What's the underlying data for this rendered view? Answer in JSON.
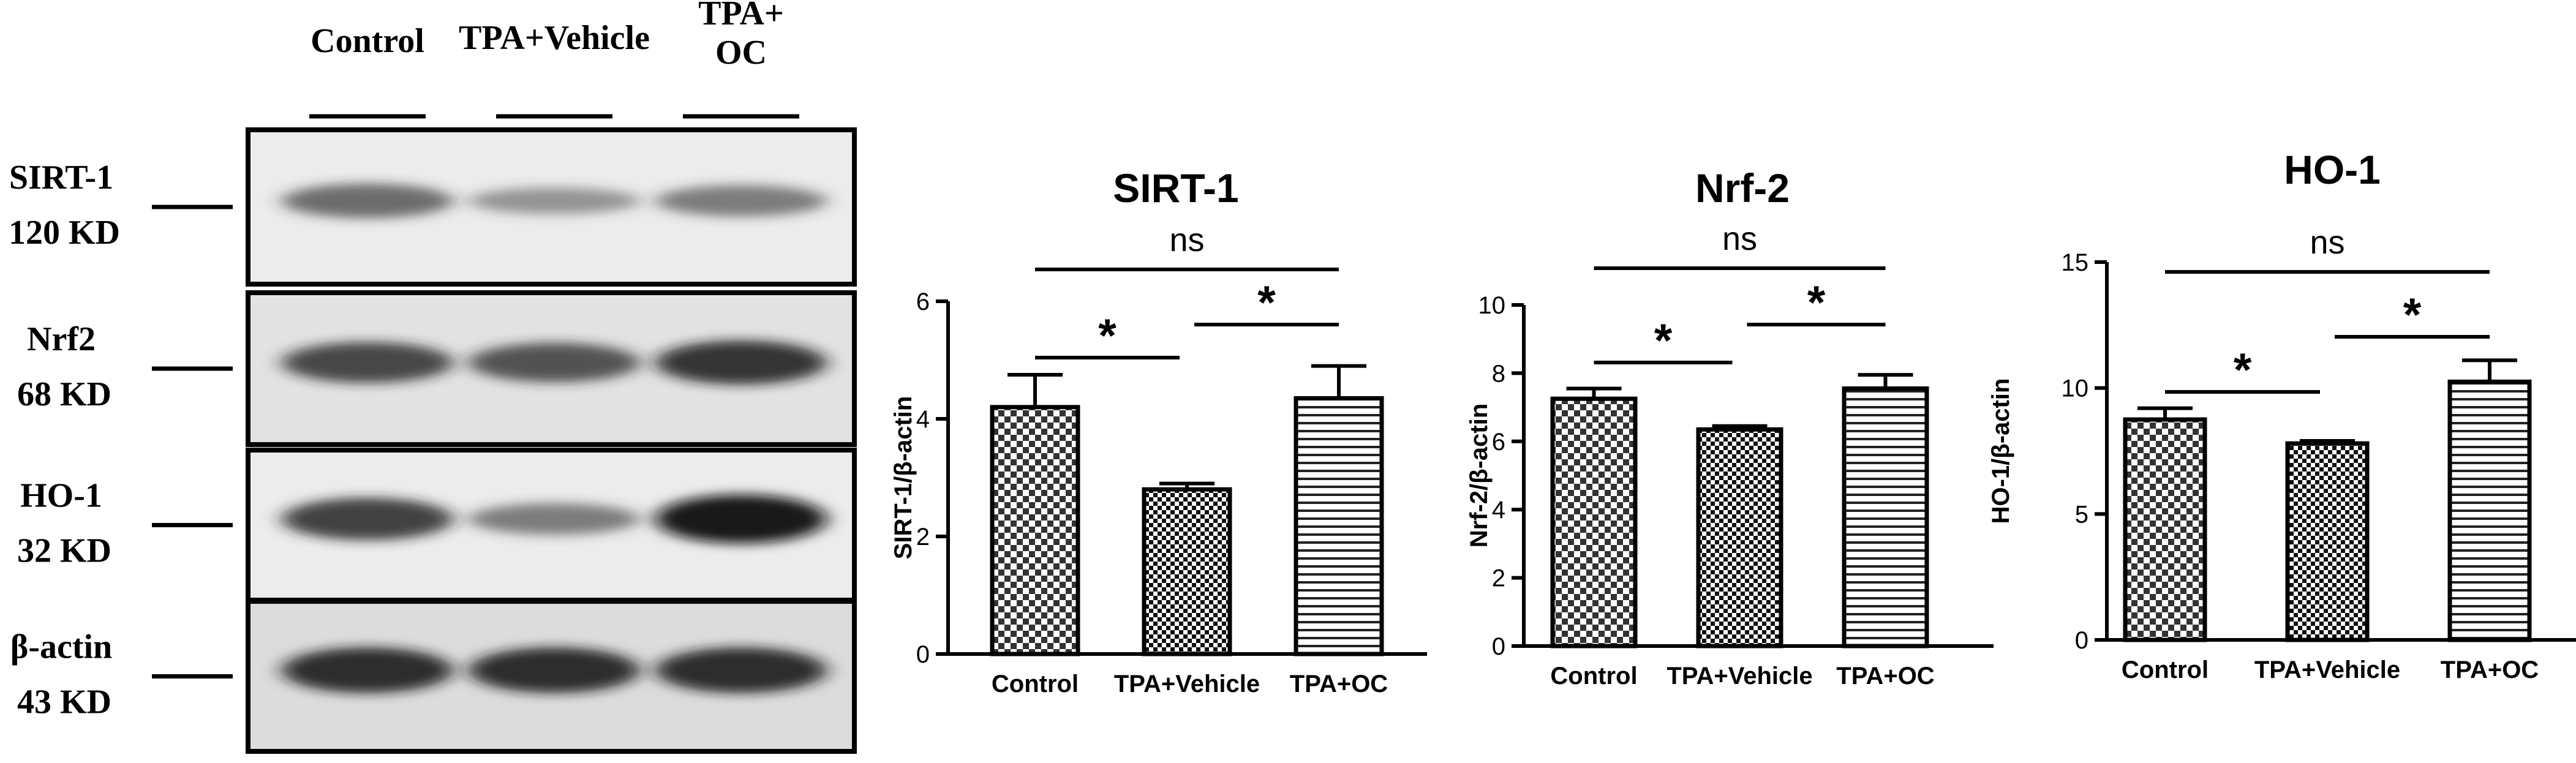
{
  "blot": {
    "lanes": [
      "Control",
      "TPA+Vehicle",
      "TPA+\nOC"
    ],
    "rows": [
      {
        "protein": "SIRT-1",
        "weight": "120 KD",
        "bands": [
          0.55,
          0.3,
          0.45
        ],
        "bg": "#ececec"
      },
      {
        "protein": "Nrf2",
        "weight": "68 KD",
        "bands": [
          0.75,
          0.7,
          0.85
        ],
        "bg": "#e2e2e2"
      },
      {
        "protein": "HO-1",
        "weight": "32 KD",
        "bands": [
          0.8,
          0.45,
          1.0
        ],
        "bg": "#ececec"
      },
      {
        "protein": "β-actin",
        "weight": "43 KD",
        "bands": [
          0.9,
          0.9,
          0.9
        ],
        "bg": "#dcdcdc"
      }
    ]
  },
  "chart_data": [
    {
      "type": "bar",
      "title": "SIRT-1",
      "ylabel": "SIRT-1/β-actin",
      "categories": [
        "Control",
        "TPA+Vehicle",
        "TPA+OC"
      ],
      "values": [
        4.2,
        2.8,
        4.35
      ],
      "errors": [
        0.55,
        0.1,
        0.55
      ],
      "ylim": [
        0,
        6
      ],
      "yticks": [
        0,
        2,
        4,
        6
      ],
      "patterns": [
        "checker",
        "checker-dense",
        "hlines"
      ],
      "annotations": [
        {
          "label": "ns",
          "from": 0,
          "to": 2
        },
        {
          "label": "*",
          "from": 0,
          "to": 1
        },
        {
          "label": "*",
          "from": 1,
          "to": 2
        }
      ]
    },
    {
      "type": "bar",
      "title": "Nrf-2",
      "ylabel": "Nrf-2/β-actin",
      "categories": [
        "Control",
        "TPA+Vehicle",
        "TPA+OC"
      ],
      "values": [
        7.25,
        6.35,
        7.55
      ],
      "errors": [
        0.3,
        0.1,
        0.4
      ],
      "ylim": [
        0,
        10
      ],
      "yticks": [
        0,
        2,
        4,
        6,
        8,
        10
      ],
      "patterns": [
        "checker",
        "checker-dense",
        "hlines"
      ],
      "annotations": [
        {
          "label": "ns",
          "from": 0,
          "to": 2
        },
        {
          "label": "*",
          "from": 0,
          "to": 1
        },
        {
          "label": "*",
          "from": 1,
          "to": 2
        }
      ]
    },
    {
      "type": "bar",
      "title": "HO-1",
      "ylabel": "HO-1/β-actin",
      "categories": [
        "Control",
        "TPA+Vehicle",
        "TPA+OC"
      ],
      "values": [
        8.75,
        7.8,
        10.25
      ],
      "errors": [
        0.45,
        0.1,
        0.85
      ],
      "ylim": [
        0,
        15
      ],
      "yticks": [
        0,
        5,
        10,
        15
      ],
      "patterns": [
        "checker",
        "checker-dense",
        "hlines"
      ],
      "annotations": [
        {
          "label": "ns",
          "from": 0,
          "to": 2
        },
        {
          "label": "*",
          "from": 0,
          "to": 1
        },
        {
          "label": "*",
          "from": 1,
          "to": 2
        }
      ]
    }
  ]
}
